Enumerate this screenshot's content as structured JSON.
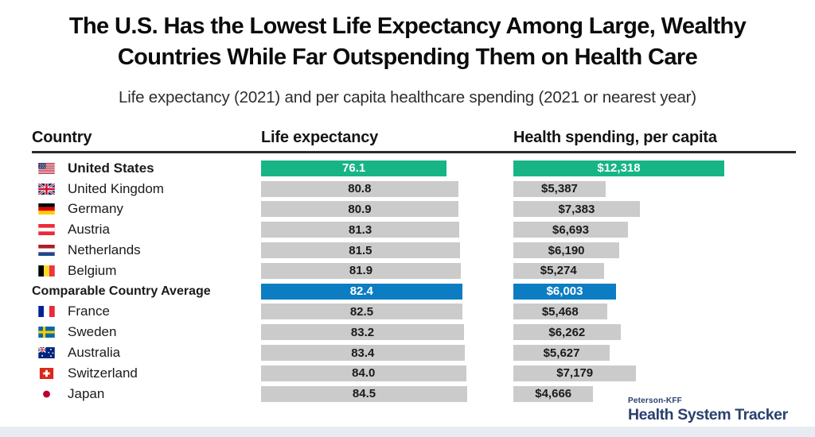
{
  "page": {
    "title_line1": "The U.S. Has the Lowest Life Expectancy Among Large, Wealthy",
    "title_line2": "Countries While Far Outspending Them on Health Care",
    "subtitle": "Life expectancy (2021) and per capita healthcare spending (2021 or nearest year)"
  },
  "table": {
    "columns": [
      "Country",
      "Life expectancy",
      "Health spending, per capita"
    ]
  },
  "chart_data": {
    "type": "bar",
    "orientation": "horizontal",
    "title": "The U.S. Has the Lowest Life Expectancy Among Large, Wealthy Countries While Far Outspending Them on Health Care",
    "subtitle": "Life expectancy (2021) and per capita healthcare spending (2021 or nearest year)",
    "columns": [
      "Country",
      "Life expectancy",
      "Health spending, per capita"
    ],
    "life_axis_max": 84.5,
    "spending_axis_max": 12318,
    "default_bar_color": "#CBCBCB",
    "rows": [
      {
        "country": "United States",
        "flag": "us",
        "emphasis": true,
        "bar_color": "#17B586",
        "life_expectancy": 76.1,
        "life_label": "76.1",
        "health_spending": 12318,
        "spending_label": "$12,318"
      },
      {
        "country": "United Kingdom",
        "flag": "uk",
        "emphasis": false,
        "bar_color": null,
        "life_expectancy": 80.8,
        "life_label": "80.8",
        "health_spending": 5387,
        "spending_label": "$5,387"
      },
      {
        "country": "Germany",
        "flag": "de",
        "emphasis": false,
        "bar_color": null,
        "life_expectancy": 80.9,
        "life_label": "80.9",
        "health_spending": 7383,
        "spending_label": "$7,383"
      },
      {
        "country": "Austria",
        "flag": "at",
        "emphasis": false,
        "bar_color": null,
        "life_expectancy": 81.3,
        "life_label": "81.3",
        "health_spending": 6693,
        "spending_label": "$6,693"
      },
      {
        "country": "Netherlands",
        "flag": "nl",
        "emphasis": false,
        "bar_color": null,
        "life_expectancy": 81.5,
        "life_label": "81.5",
        "health_spending": 6190,
        "spending_label": "$6,190"
      },
      {
        "country": "Belgium",
        "flag": "be",
        "emphasis": false,
        "bar_color": null,
        "life_expectancy": 81.9,
        "life_label": "81.9",
        "health_spending": 5274,
        "spending_label": "$5,274"
      },
      {
        "country": "Comparable Country Average",
        "flag": null,
        "emphasis": true,
        "bar_color": "#0C7DC2",
        "life_expectancy": 82.4,
        "life_label": "82.4",
        "health_spending": 6003,
        "spending_label": "$6,003"
      },
      {
        "country": "France",
        "flag": "fr",
        "emphasis": false,
        "bar_color": null,
        "life_expectancy": 82.5,
        "life_label": "82.5",
        "health_spending": 5468,
        "spending_label": "$5,468"
      },
      {
        "country": "Sweden",
        "flag": "se",
        "emphasis": false,
        "bar_color": null,
        "life_expectancy": 83.2,
        "life_label": "83.2",
        "health_spending": 6262,
        "spending_label": "$6,262"
      },
      {
        "country": "Australia",
        "flag": "au",
        "emphasis": false,
        "bar_color": null,
        "life_expectancy": 83.4,
        "life_label": "83.4",
        "health_spending": 5627,
        "spending_label": "$5,627"
      },
      {
        "country": "Switzerland",
        "flag": "ch",
        "emphasis": false,
        "bar_color": null,
        "life_expectancy": 84.0,
        "life_label": "84.0",
        "health_spending": 7179,
        "spending_label": "$7,179"
      },
      {
        "country": "Japan",
        "flag": "jp",
        "emphasis": false,
        "bar_color": null,
        "life_expectancy": 84.5,
        "life_label": "84.5",
        "health_spending": 4666,
        "spending_label": "$4,666"
      }
    ]
  },
  "logo": {
    "brand_top": "Peterson-KFF",
    "brand_name": "Health System Tracker"
  },
  "colors": {
    "us_highlight": "#17B586",
    "average_highlight": "#0C7DC2",
    "bar_gray": "#CBCBCB",
    "logo_navy": "#2A406F"
  }
}
